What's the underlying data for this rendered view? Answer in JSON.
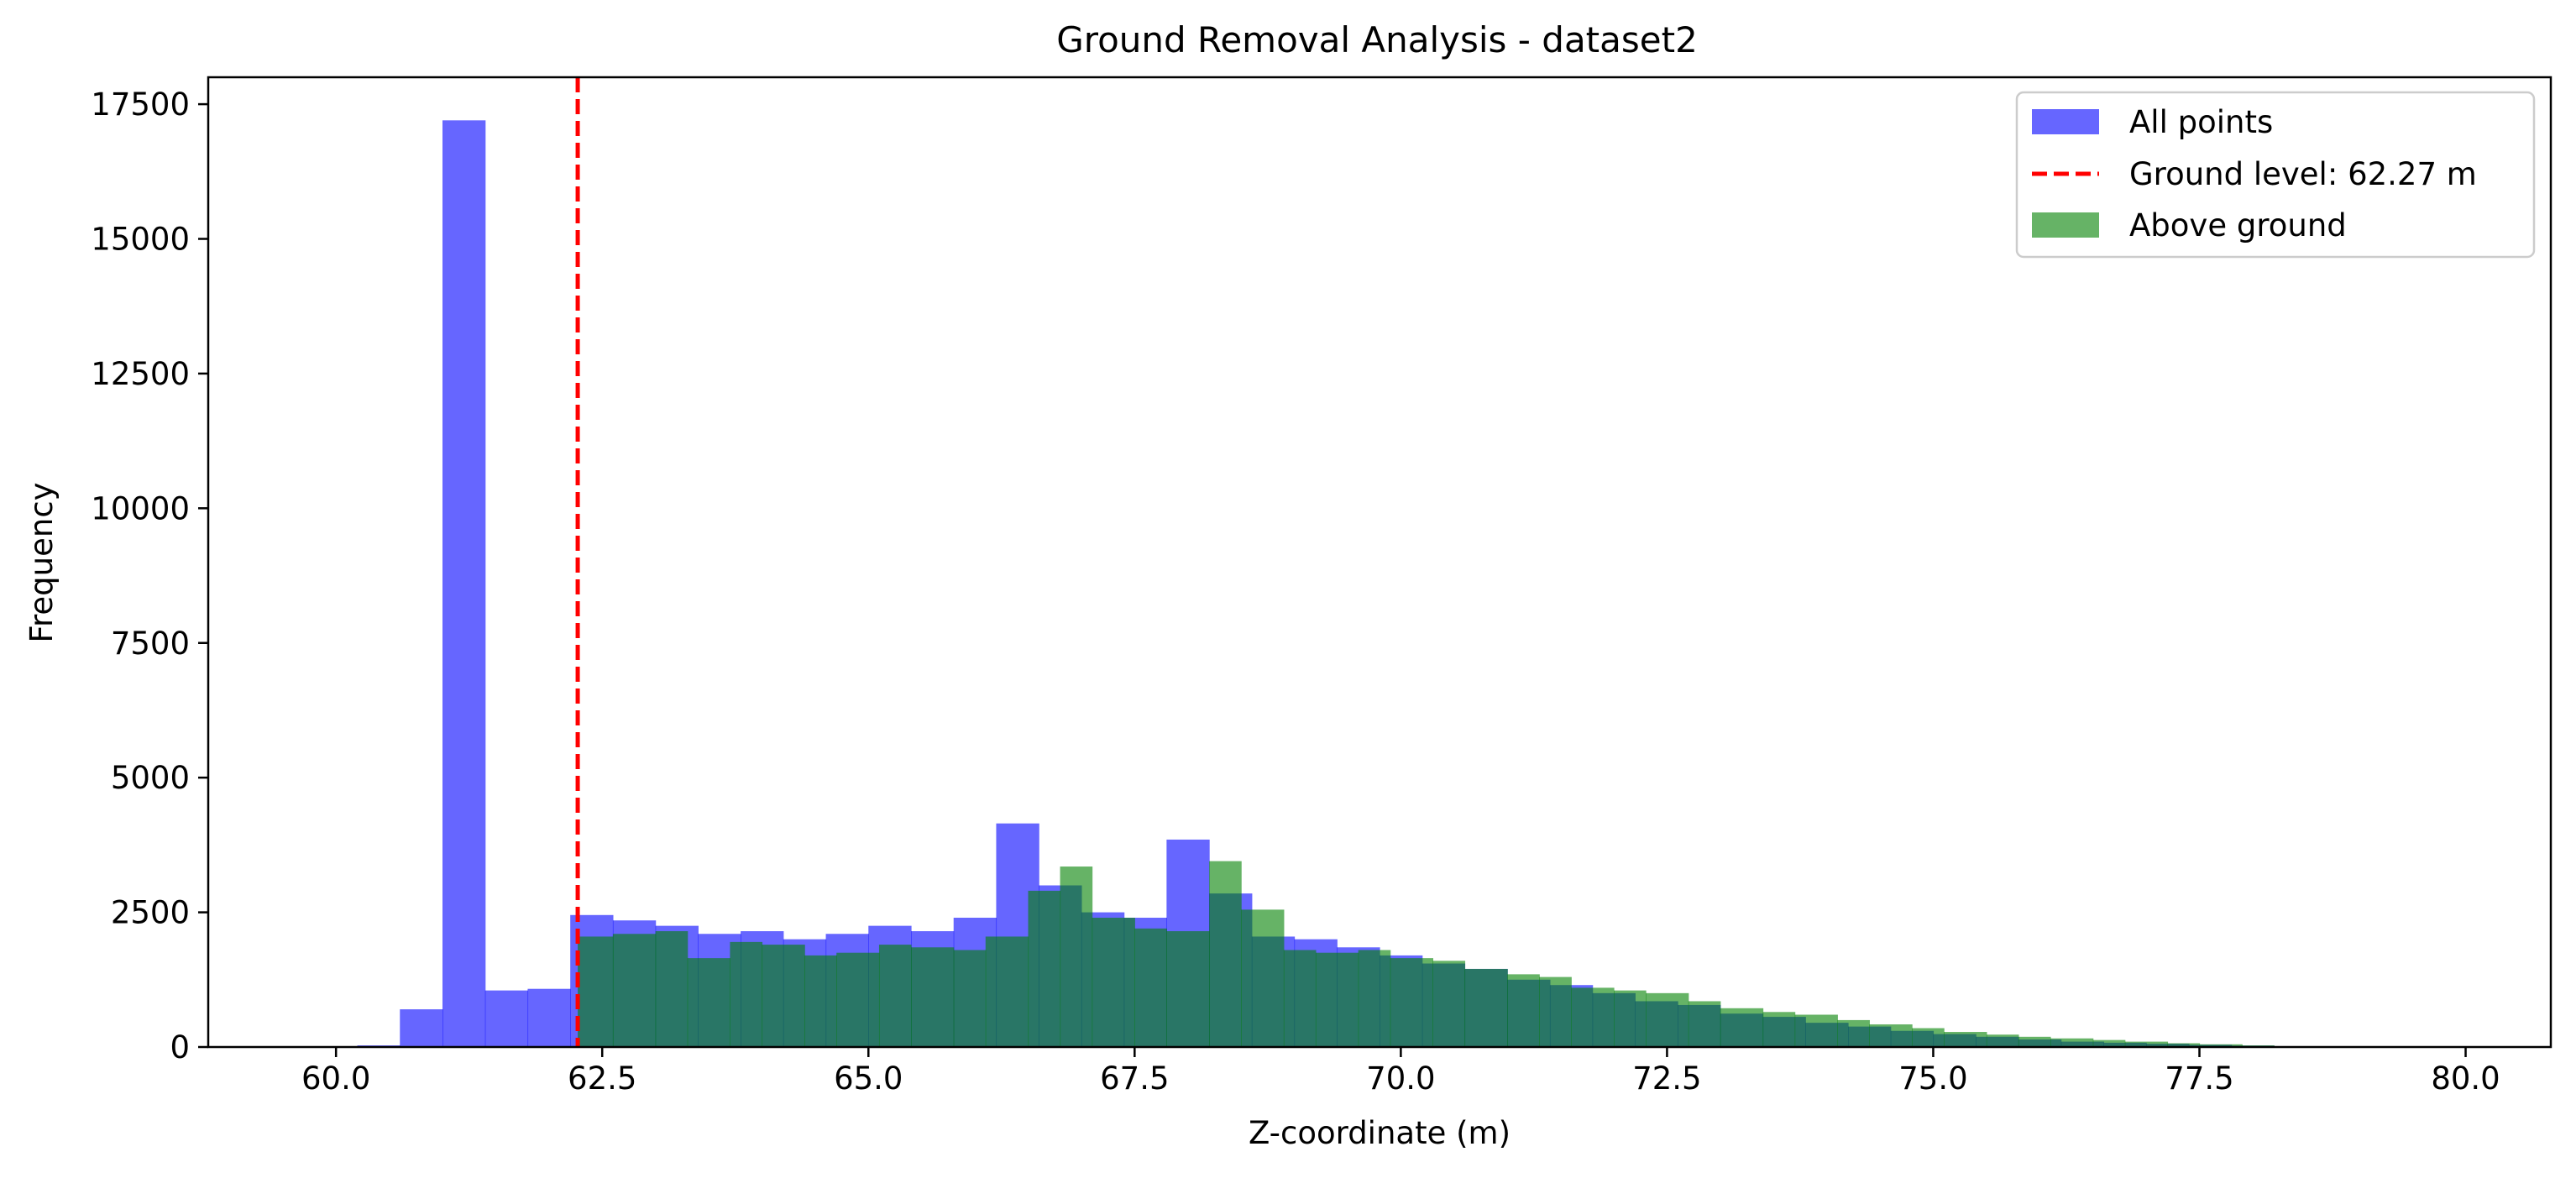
{
  "chart_data": {
    "type": "histogram",
    "title": "Ground Removal Analysis - dataset2",
    "xlabel": "Z-coordinate (m)",
    "ylabel": "Frequency",
    "xlim": [
      58.8,
      80.8
    ],
    "ylim": [
      0,
      18000
    ],
    "x_ticks": [
      "60.0",
      "62.5",
      "65.0",
      "67.5",
      "70.0",
      "72.5",
      "75.0",
      "77.5",
      "80.0"
    ],
    "y_ticks": [
      "0",
      "2500",
      "5000",
      "7500",
      "10000",
      "12500",
      "15000",
      "17500"
    ],
    "grid": false,
    "legend_position": "top-right",
    "ground_level": {
      "label": "Ground level: 62.27 m",
      "value": 62.27,
      "color": "#ff0000",
      "style": "dashed"
    },
    "series": [
      {
        "name": "All points",
        "color": "#0000ff",
        "alpha": 0.6,
        "bin_edges": [
          59.8,
          60.2,
          60.6,
          61.0,
          61.4,
          61.8,
          62.2,
          62.6,
          63.0,
          63.4,
          63.8,
          64.2,
          64.6,
          65.0,
          65.4,
          65.8,
          66.2,
          66.6,
          67.0,
          67.4,
          67.8,
          68.2,
          68.6,
          69.0,
          69.4,
          69.8,
          70.2,
          70.6,
          71.0,
          71.4,
          71.8,
          72.2,
          72.6,
          73.0,
          73.4,
          73.8,
          74.2,
          74.6,
          75.0,
          75.4,
          75.8,
          76.2,
          76.6,
          77.0,
          77.4,
          77.8,
          78.2,
          78.6,
          79.0,
          79.4,
          79.8
        ],
        "counts": [
          10,
          30,
          700,
          17200,
          1050,
          1080,
          2450,
          2350,
          2250,
          2100,
          2150,
          2000,
          2100,
          2250,
          2150,
          2400,
          4150,
          3000,
          2500,
          2400,
          3850,
          2850,
          2050,
          2000,
          1850,
          1700,
          1550,
          1450,
          1250,
          1150,
          1000,
          850,
          780,
          620,
          560,
          450,
          380,
          300,
          240,
          190,
          140,
          100,
          80,
          60,
          40,
          25,
          15,
          8,
          5,
          2
        ]
      },
      {
        "name": "Above ground",
        "color": "#008000",
        "alpha": 0.6,
        "bin_edges": [
          62.27,
          62.6,
          63.0,
          63.3,
          63.7,
          64.0,
          64.4,
          64.7,
          65.1,
          65.4,
          65.8,
          66.1,
          66.5,
          66.8,
          67.1,
          67.5,
          67.8,
          68.2,
          68.5,
          68.9,
          69.2,
          69.6,
          69.9,
          70.3,
          70.6,
          71.0,
          71.3,
          71.6,
          72.0,
          72.3,
          72.7,
          73.0,
          73.4,
          73.7,
          74.1,
          74.4,
          74.8,
          75.1,
          75.5,
          75.8,
          76.1,
          76.5,
          76.8,
          77.2,
          77.5,
          77.9,
          78.2,
          78.6,
          78.9
        ],
        "counts": [
          2050,
          2100,
          2150,
          1650,
          1950,
          1900,
          1700,
          1750,
          1900,
          1850,
          1800,
          2050,
          2900,
          3350,
          2400,
          2200,
          2150,
          3450,
          2550,
          1800,
          1750,
          1800,
          1650,
          1600,
          1450,
          1350,
          1300,
          1100,
          1050,
          1000,
          850,
          720,
          650,
          600,
          500,
          420,
          350,
          280,
          230,
          190,
          160,
          130,
          100,
          70,
          50,
          30,
          15,
          5
        ]
      }
    ]
  }
}
